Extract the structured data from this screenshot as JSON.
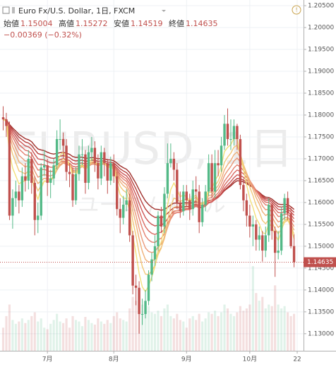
{
  "header": {
    "symbol": "Euro Fx/U.S. Dollar, 1日, FXCM",
    "open_label": "始値",
    "open": "1.15004",
    "high_label": "高値",
    "high": "1.15272",
    "low_label": "安値",
    "low": "1.14519",
    "close_label": "終値",
    "close": "1.14635",
    "change": "−0.00369 (−0.32%)"
  },
  "watermark": {
    "symbol": "EURUSD, 1日",
    "name": "ユーロ / 米ドル"
  },
  "chart_data": {
    "type": "candlestick",
    "open": [
      1.1795,
      1.179,
      1.1775,
      1.157,
      1.161,
      1.1625,
      1.1605,
      1.166,
      1.165,
      1.17,
      1.1645,
      1.156,
      1.157,
      1.168,
      1.1685,
      1.1645,
      1.1655,
      1.1685,
      1.1745,
      1.1745,
      1.173,
      1.167,
      1.1665,
      1.1605,
      1.1665,
      1.171,
      1.171,
      1.1645,
      1.1715,
      1.1725,
      1.169,
      1.1655,
      1.1715,
      1.169,
      1.165,
      1.169,
      1.166,
      1.1585,
      1.1565,
      1.1595,
      1.1605,
      1.1525,
      1.141,
      1.1405,
      1.1345,
      1.1345,
      1.1375,
      1.1435,
      1.147,
      1.15,
      1.157,
      1.1545,
      1.162,
      1.169,
      1.17,
      1.1675,
      1.16,
      1.158,
      1.1625,
      1.1605,
      1.1585,
      1.163,
      1.1625,
      1.1555,
      1.1595,
      1.1625,
      1.169,
      1.1625,
      1.169,
      1.1685,
      1.173,
      1.178,
      1.1745,
      1.1745,
      1.1775,
      1.1745,
      1.164,
      1.1605,
      1.157,
      1.1545,
      1.155,
      1.1515,
      1.1525,
      1.149,
      1.1525,
      1.1595,
      1.1535,
      1.1485,
      1.149,
      1.1575,
      1.161,
      1.1575,
      1.15004
    ],
    "high": [
      1.182,
      1.1805,
      1.1785,
      1.163,
      1.165,
      1.164,
      1.168,
      1.169,
      1.172,
      1.1715,
      1.166,
      1.16,
      1.169,
      1.172,
      1.17,
      1.1675,
      1.17,
      1.1765,
      1.179,
      1.176,
      1.1745,
      1.169,
      1.168,
      1.168,
      1.173,
      1.1745,
      1.172,
      1.173,
      1.175,
      1.174,
      1.171,
      1.173,
      1.1725,
      1.17,
      1.1705,
      1.171,
      1.167,
      1.161,
      1.1615,
      1.163,
      1.162,
      1.1535,
      1.1435,
      1.142,
      1.138,
      1.14,
      1.1445,
      1.1485,
      1.1525,
      1.158,
      1.159,
      1.1635,
      1.1735,
      1.1735,
      1.1715,
      1.169,
      1.1625,
      1.164,
      1.164,
      1.162,
      1.165,
      1.166,
      1.164,
      1.161,
      1.164,
      1.171,
      1.171,
      1.172,
      1.172,
      1.175,
      1.18,
      1.1815,
      1.179,
      1.179,
      1.178,
      1.1755,
      1.1655,
      1.162,
      1.1595,
      1.157,
      1.156,
      1.1545,
      1.1535,
      1.1545,
      1.161,
      1.16,
      1.1545,
      1.1535,
      1.159,
      1.162,
      1.1625,
      1.159,
      1.15272
    ],
    "low": [
      1.1765,
      1.175,
      1.156,
      1.154,
      1.159,
      1.1575,
      1.159,
      1.1625,
      1.163,
      1.162,
      1.1525,
      1.153,
      1.156,
      1.166,
      1.1615,
      1.161,
      1.164,
      1.1675,
      1.172,
      1.17,
      1.165,
      1.1635,
      1.159,
      1.1595,
      1.165,
      1.1685,
      1.162,
      1.163,
      1.1695,
      1.167,
      1.163,
      1.164,
      1.166,
      1.162,
      1.164,
      1.1645,
      1.157,
      1.153,
      1.155,
      1.158,
      1.151,
      1.139,
      1.1365,
      1.13,
      1.132,
      1.1335,
      1.1365,
      1.142,
      1.1455,
      1.149,
      1.153,
      1.153,
      1.161,
      1.168,
      1.165,
      1.1585,
      1.1565,
      1.157,
      1.159,
      1.156,
      1.157,
      1.16,
      1.153,
      1.1545,
      1.158,
      1.1615,
      1.161,
      1.161,
      1.166,
      1.167,
      1.172,
      1.173,
      1.172,
      1.173,
      1.172,
      1.163,
      1.158,
      1.1545,
      1.152,
      1.15,
      1.149,
      1.149,
      1.1465,
      1.1475,
      1.151,
      1.1515,
      1.143,
      1.147,
      1.148,
      1.156,
      1.156,
      1.1495,
      1.14519
    ],
    "close": [
      1.179,
      1.1775,
      1.157,
      1.161,
      1.1625,
      1.1605,
      1.166,
      1.165,
      1.17,
      1.1645,
      1.156,
      1.157,
      1.168,
      1.1685,
      1.1645,
      1.1655,
      1.1685,
      1.1745,
      1.1745,
      1.173,
      1.167,
      1.1665,
      1.1605,
      1.1665,
      1.171,
      1.171,
      1.1645,
      1.1715,
      1.1725,
      1.169,
      1.1655,
      1.1715,
      1.169,
      1.165,
      1.169,
      1.166,
      1.1585,
      1.1565,
      1.1595,
      1.1605,
      1.1525,
      1.141,
      1.1405,
      1.1345,
      1.1345,
      1.1375,
      1.1435,
      1.147,
      1.15,
      1.157,
      1.1545,
      1.162,
      1.169,
      1.17,
      1.1675,
      1.16,
      1.158,
      1.1625,
      1.1605,
      1.1585,
      1.163,
      1.1625,
      1.1555,
      1.1595,
      1.1625,
      1.169,
      1.1625,
      1.169,
      1.1685,
      1.173,
      1.178,
      1.1745,
      1.1745,
      1.1775,
      1.1745,
      1.164,
      1.1605,
      1.157,
      1.1545,
      1.155,
      1.1515,
      1.1525,
      1.149,
      1.1525,
      1.1595,
      1.1535,
      1.1485,
      1.149,
      1.1575,
      1.161,
      1.1575,
      1.15,
      1.14635
    ],
    "volume": [
      30,
      45,
      60,
      40,
      35,
      38,
      42,
      36,
      40,
      45,
      50,
      38,
      42,
      30,
      28,
      35,
      40,
      48,
      38,
      36,
      42,
      30,
      45,
      40,
      38,
      32,
      44,
      40,
      36,
      34,
      42,
      38,
      35,
      40,
      36,
      45,
      50,
      42,
      40,
      38,
      55,
      70,
      65,
      80,
      60,
      55,
      58,
      50,
      48,
      52,
      45,
      55,
      60,
      45,
      42,
      48,
      40,
      38,
      30,
      42,
      45,
      40,
      48,
      38,
      42,
      50,
      48,
      52,
      45,
      50,
      60,
      55,
      48,
      45,
      50,
      58,
      52,
      55,
      60,
      110,
      75,
      65,
      70,
      55,
      60,
      58,
      85,
      60,
      55,
      58,
      50,
      45,
      48
    ],
    "ylim": [
      1.1261,
      1.2063
    ],
    "yticks": [
      {
        "value": 1.13,
        "label": "1.13000"
      },
      {
        "value": 1.135,
        "label": "1.13500"
      },
      {
        "value": 1.14,
        "label": "1.14000"
      },
      {
        "value": 1.145,
        "label": "1.14500"
      },
      {
        "value": 1.15,
        "label": "1.15000"
      },
      {
        "value": 1.155,
        "label": "1.15500"
      },
      {
        "value": 1.16,
        "label": "1.16000"
      },
      {
        "value": 1.165,
        "label": "1.16500"
      },
      {
        "value": 1.17,
        "label": "1.17000"
      },
      {
        "value": 1.175,
        "label": "1.17500"
      },
      {
        "value": 1.18,
        "label": "1.18000"
      },
      {
        "value": 1.185,
        "label": "1.18500"
      },
      {
        "value": 1.19,
        "label": "1.19000"
      },
      {
        "value": 1.195,
        "label": "1.19500"
      },
      {
        "value": 1.2,
        "label": "1.20000"
      },
      {
        "value": 1.205,
        "label": "1.20500"
      }
    ],
    "xlim": [
      -1,
      95
    ],
    "xticks": [
      {
        "value": 14,
        "label": "7月"
      },
      {
        "value": 35,
        "label": "8月"
      },
      {
        "value": 58,
        "label": "9月"
      },
      {
        "value": 78,
        "label": "10月"
      },
      {
        "value": 93,
        "label": "22"
      }
    ],
    "last_label": "1.14635",
    "up_color": "#53b987",
    "down_color": "#c0504d",
    "ribbon": {
      "periods": [
        5,
        8,
        11,
        14,
        18,
        22,
        27,
        33,
        40
      ],
      "colors": [
        "#f3e07a",
        "#f2c878",
        "#efb078",
        "#ea9878",
        "#e48070",
        "#d96a62",
        "#cc5555",
        "#b8403e",
        "#a0302c"
      ]
    },
    "grid": true
  }
}
